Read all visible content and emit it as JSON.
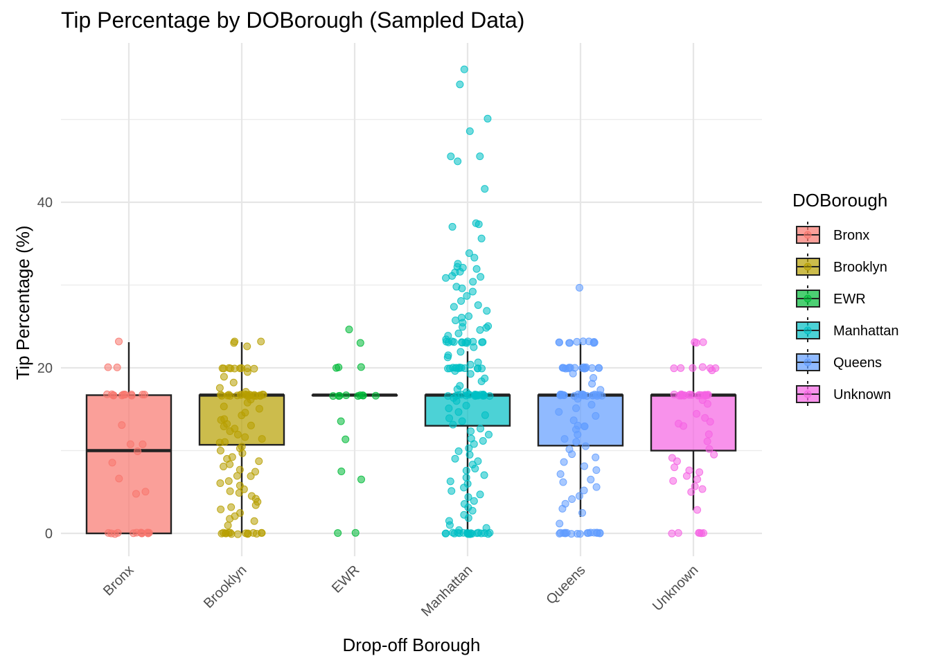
{
  "chart_data": {
    "type": "box+jitter",
    "title": "Tip Percentage by DOBorough (Sampled Data)",
    "xlabel": "Drop-off Borough",
    "ylabel": "Tip Percentage (%)",
    "ylim": [
      -2.8,
      59.5
    ],
    "yticks": [
      0,
      20,
      40
    ],
    "minor_yticks": [
      10,
      30,
      50
    ],
    "categories": [
      "Bronx",
      "Brooklyn",
      "EWR",
      "Manhattan",
      "Queens",
      "Unknown"
    ],
    "colors": [
      "#F8766D",
      "#B79F00",
      "#00BA38",
      "#00BFC4",
      "#619CFF",
      "#F564E3"
    ],
    "legend": {
      "title": "DOBorough",
      "position": "right"
    },
    "boxes": [
      {
        "name": "Bronx",
        "whisker_low": 0,
        "q1": 0,
        "median": 10.0,
        "q3": 16.7,
        "whisker_high": 23.1
      },
      {
        "name": "Brooklyn",
        "whisker_low": 0,
        "q1": 10.7,
        "median": 16.7,
        "q3": 16.7,
        "whisker_high": 23.1
      },
      {
        "name": "EWR",
        "whisker_low": 16.7,
        "q1": 16.7,
        "median": 16.7,
        "q3": 16.7,
        "whisker_high": 16.7
      },
      {
        "name": "Manhattan",
        "whisker_low": 0,
        "q1": 13.0,
        "median": 16.7,
        "q3": 16.7,
        "whisker_high": 22.0
      },
      {
        "name": "Queens",
        "whisker_low": 2.0,
        "q1": 10.6,
        "median": 16.7,
        "q3": 16.7,
        "whisker_high": 23.1
      },
      {
        "name": "Unknown",
        "whisker_low": 2.8,
        "q1": 10.0,
        "median": 16.7,
        "q3": 16.7,
        "whisker_high": 23.1
      }
    ],
    "points": [
      {
        "category": "Bronx",
        "values": [
          23.1,
          20.0,
          20.0,
          16.7,
          16.7,
          16.7,
          16.7,
          16.7,
          16.7,
          16.7,
          16.7,
          16.7,
          16.7,
          16.7,
          16.7,
          13.0,
          10.7,
          10.7,
          10.0,
          8.6,
          6.6,
          5.1,
          4.7,
          0,
          0,
          0,
          0,
          0,
          0,
          0,
          0,
          0,
          0,
          0,
          0
        ]
      },
      {
        "category": "Brooklyn",
        "values": [
          23.1,
          23.1,
          23.1,
          22.6,
          20.0,
          20.0,
          20.0,
          20.0,
          20.0,
          20.0,
          20.0,
          20.0,
          20.0,
          19.5,
          19.0,
          18.2,
          17.6,
          17.0,
          16.7,
          16.7,
          16.7,
          16.7,
          16.7,
          16.7,
          16.7,
          16.7,
          16.7,
          16.7,
          16.7,
          16.7,
          16.7,
          16.7,
          16.7,
          16.7,
          16.7,
          16.7,
          16.7,
          16.7,
          16.7,
          16.2,
          15.8,
          15.4,
          15.0,
          14.6,
          14.3,
          13.9,
          13.6,
          13.3,
          13.0,
          13.0,
          12.7,
          12.3,
          12.0,
          11.7,
          11.4,
          11.1,
          10.9,
          10.5,
          10.2,
          10.0,
          9.7,
          9.3,
          9.0,
          8.8,
          8.3,
          8.0,
          7.6,
          7.4,
          7.0,
          6.9,
          6.4,
          6.1,
          5.7,
          5.4,
          5.1,
          4.8,
          4.5,
          4.2,
          3.9,
          3.4,
          3.2,
          2.8,
          2.4,
          2.0,
          1.8,
          1.4,
          0.9,
          0,
          0,
          0,
          0,
          0,
          0,
          0,
          0,
          0,
          0,
          0,
          0,
          0,
          0,
          0
        ]
      },
      {
        "category": "EWR",
        "values": [
          24.7,
          23.1,
          20.0,
          20.0,
          20.0,
          16.7,
          16.7,
          16.7,
          16.7,
          16.7,
          16.7,
          16.7,
          16.7,
          16.7,
          13.6,
          11.4,
          7.4,
          6.6,
          0,
          0
        ]
      },
      {
        "category": "Manhattan",
        "values": [
          56.1,
          54.3,
          50.0,
          48.6,
          45.6,
          45.5,
          44.9,
          41.7,
          37.4,
          37.4,
          37.0,
          35.6,
          33.9,
          33.3,
          32.6,
          32.1,
          32.1,
          32.0,
          31.7,
          31.5,
          31.0,
          31.0,
          30.9,
          30.5,
          29.7,
          29.6,
          29.2,
          28.6,
          28.0,
          27.6,
          27.4,
          26.9,
          26.3,
          26.0,
          25.8,
          25.4,
          25.0,
          24.9,
          24.8,
          24.6,
          24.1,
          23.9,
          23.5,
          23.1,
          23.1,
          23.1,
          23.1,
          23.1,
          23.1,
          23.1,
          23.1,
          23.1,
          23.1,
          23.1,
          23.1,
          22.5,
          22.0,
          21.6,
          21.2,
          20.7,
          20.3,
          20.0,
          20.0,
          20.0,
          20.0,
          20.0,
          20.0,
          20.0,
          20.0,
          20.0,
          20.0,
          20.0,
          20.0,
          19.6,
          19.2,
          18.7,
          18.3,
          17.9,
          17.5,
          17.1,
          16.7,
          16.7,
          16.7,
          16.7,
          16.7,
          16.7,
          16.7,
          16.7,
          16.7,
          16.7,
          16.7,
          16.7,
          16.7,
          16.7,
          16.7,
          16.7,
          16.7,
          16.7,
          16.7,
          16.7,
          16.3,
          15.9,
          15.5,
          15.1,
          14.7,
          14.3,
          13.9,
          13.5,
          13.1,
          12.7,
          12.3,
          11.9,
          11.5,
          11.1,
          10.7,
          10.3,
          9.9,
          9.5,
          9.1,
          8.7,
          8.3,
          7.9,
          7.5,
          7.1,
          6.7,
          6.3,
          5.9,
          5.5,
          5.1,
          4.7,
          4.3,
          3.9,
          3.5,
          3.1,
          2.7,
          2.3,
          1.9,
          1.5,
          1.1,
          0.7,
          0.3,
          0,
          0,
          0,
          0,
          0,
          0,
          0,
          0,
          0,
          0,
          0,
          0,
          0,
          0,
          0,
          0,
          0,
          0,
          0,
          0
        ]
      },
      {
        "category": "Queens",
        "values": [
          29.7,
          23.1,
          23.1,
          23.1,
          23.1,
          23.1,
          23.1,
          23.1,
          23.1,
          23.1,
          23.1,
          20.0,
          20.0,
          20.0,
          20.0,
          20.0,
          20.0,
          20.0,
          20.0,
          20.0,
          20.0,
          20.0,
          20.0,
          20.0,
          20.0,
          20.0,
          20.0,
          19.4,
          18.7,
          18.0,
          17.4,
          16.7,
          16.7,
          16.7,
          16.7,
          16.7,
          16.7,
          16.7,
          16.7,
          16.7,
          16.7,
          16.7,
          16.7,
          16.7,
          16.7,
          16.7,
          16.7,
          16.7,
          16.7,
          16.7,
          16.7,
          16.7,
          16.7,
          16.2,
          15.6,
          15.1,
          14.6,
          14.1,
          13.6,
          13.0,
          13.0,
          13.0,
          12.5,
          12.0,
          11.5,
          11.0,
          10.6,
          10.1,
          9.6,
          9.1,
          8.6,
          8.1,
          7.6,
          7.1,
          6.6,
          6.1,
          5.6,
          5.1,
          4.6,
          4.1,
          3.6,
          2.9,
          2.4,
          1.2,
          0,
          0,
          0,
          0,
          0,
          0,
          0,
          0,
          0,
          0,
          0,
          0,
          0,
          0,
          0,
          0,
          0
        ]
      },
      {
        "category": "Unknown",
        "values": [
          23.1,
          23.1,
          23.1,
          20.0,
          20.0,
          20.0,
          20.0,
          20.0,
          20.0,
          19.7,
          16.7,
          16.7,
          16.7,
          16.7,
          16.7,
          16.7,
          16.7,
          16.7,
          16.7,
          16.7,
          16.7,
          16.7,
          16.7,
          16.7,
          16.7,
          16.7,
          16.7,
          16.7,
          16.7,
          16.7,
          16.2,
          15.6,
          14.4,
          13.9,
          13.5,
          13.2,
          13.0,
          12.0,
          11.1,
          10.2,
          9.6,
          9.1,
          8.7,
          8.0,
          7.7,
          7.3,
          7.0,
          6.6,
          6.3,
          5.6,
          5.4,
          5.0,
          2.8,
          0,
          0,
          0,
          0,
          0,
          0
        ]
      }
    ]
  }
}
